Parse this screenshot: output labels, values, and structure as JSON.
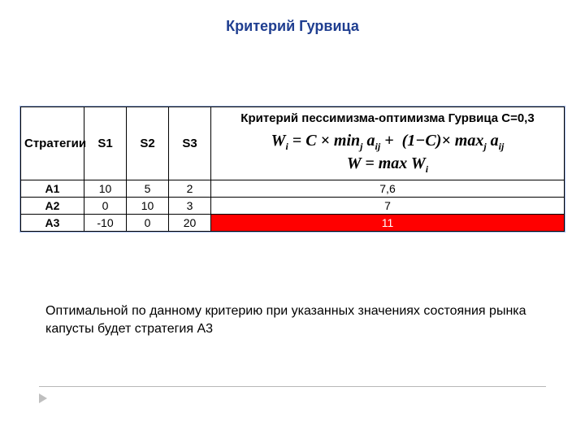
{
  "title": "Критерий Гурвица",
  "table": {
    "headers": {
      "strategy": "Стратегии",
      "s1": "S1",
      "s2": "S2",
      "s3": "S3",
      "criterion_title": "Критерий пессимизма-оптимизма Гурвица C=0,3"
    },
    "rows": [
      {
        "label": "A1",
        "s1": "10",
        "s2": "5",
        "s3": "2",
        "result": "7,6",
        "highlight": false
      },
      {
        "label": "A2",
        "s1": "0",
        "s2": "10",
        "s3": "3",
        "result": "7",
        "highlight": false
      },
      {
        "label": "A3",
        "s1": "-10",
        "s2": "0",
        "s3": "20",
        "result": "11",
        "highlight": true
      }
    ],
    "highlight_color": "#ff0000",
    "highlight_text_color": "#ffffff",
    "border_color": "#000000",
    "outer_border_color": "#9fb6e8"
  },
  "caption": "Оптимальной по данному критерию при указанных значениях  состояния рынка капусты будет стратегия А3",
  "colors": {
    "title": "#1f3e90",
    "text": "#000000",
    "background": "#ffffff",
    "footer_rule": "#b8b8b8",
    "footer_marker": "#bfbfbf"
  },
  "fonts": {
    "title_size_pt": 18,
    "body_size_pt": 16,
    "table_size_pt": 14,
    "formula_size_pt": 20
  }
}
